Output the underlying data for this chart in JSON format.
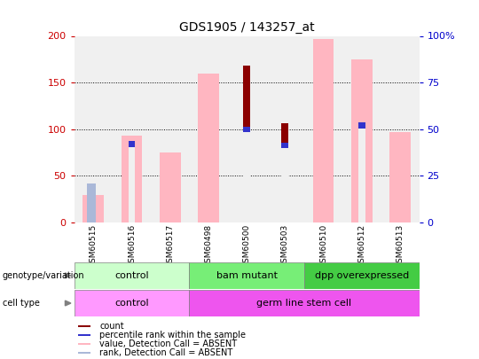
{
  "title": "GDS1905 / 143257_at",
  "samples": [
    "GSM60515",
    "GSM60516",
    "GSM60517",
    "GSM60498",
    "GSM60500",
    "GSM60503",
    "GSM60510",
    "GSM60512",
    "GSM60513"
  ],
  "count": [
    null,
    null,
    null,
    null,
    168,
    106,
    null,
    null,
    null
  ],
  "percentile_rank": [
    null,
    87,
    null,
    null,
    103,
    86,
    null,
    107,
    null
  ],
  "value_absent": [
    30,
    93,
    75,
    160,
    null,
    null,
    197,
    175,
    97
  ],
  "rank_absent": [
    42,
    null,
    null,
    null,
    null,
    null,
    null,
    null,
    null
  ],
  "ylim": [
    0,
    200
  ],
  "y2lim": [
    0,
    100
  ],
  "yticks": [
    0,
    50,
    100,
    150,
    200
  ],
  "y2ticks": [
    0,
    25,
    50,
    75,
    100
  ],
  "color_count": "#8B0000",
  "color_percentile": "#3333cc",
  "color_value_absent": "#FFB6C1",
  "color_rank_absent": "#aab8d8",
  "genotype_groups": [
    {
      "label": "control",
      "start": 0,
      "end": 3,
      "color": "#ccffcc"
    },
    {
      "label": "bam mutant",
      "start": 3,
      "end": 6,
      "color": "#77ee77"
    },
    {
      "label": "dpp overexpressed",
      "start": 6,
      "end": 9,
      "color": "#44cc44"
    }
  ],
  "celltype_groups": [
    {
      "label": "control",
      "start": 0,
      "end": 3,
      "color": "#ff99ff"
    },
    {
      "label": "germ line stem cell",
      "start": 3,
      "end": 9,
      "color": "#ee55ee"
    }
  ],
  "background_color": "#ffffff",
  "plot_bg": "#f0f0f0",
  "left_label_color": "#cc0000",
  "right_label_color": "#0000cc"
}
